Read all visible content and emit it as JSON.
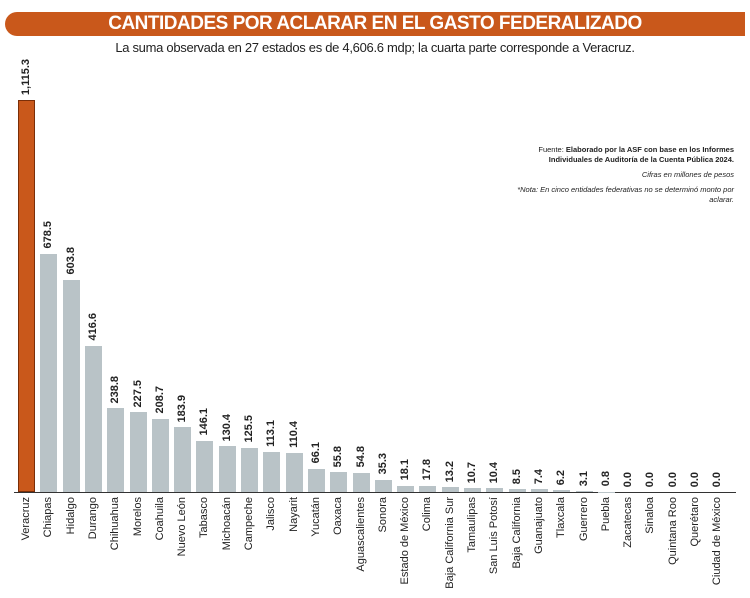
{
  "chart_data": {
    "type": "bar",
    "title": "CANTIDADES POR ACLARAR EN EL GASTO FEDERALIZADO",
    "subtitle": "La suma observada en 27 estados es de 4,606.6 mdp; la cuarta parte corresponde a Veracruz.",
    "categories": [
      "Veracruz",
      "Chiapas",
      "Hidalgo",
      "Durango",
      "Chihuahua",
      "Morelos",
      "Coahuila",
      "Nuevo León",
      "Tabasco",
      "Michoacán",
      "Campeche",
      "Jalisco",
      "Nayarit",
      "Yucatán",
      "Oaxaca",
      "Aguascalientes",
      "Sonora",
      "Estado de México",
      "Colima",
      "Baja California Sur",
      "Tamaulipas",
      "San Luis Potosí",
      "Baja California",
      "Guanajuato",
      "Tlaxcala",
      "Guerrero",
      "Puebla",
      "Zacatecas",
      "Sinaloa",
      "Quintana Roo",
      "Querétaro",
      "Ciudad de México"
    ],
    "values": [
      1115.3,
      678.5,
      603.8,
      416.6,
      238.8,
      227.5,
      208.7,
      183.9,
      146.1,
      130.4,
      125.5,
      113.1,
      110.4,
      66.1,
      55.8,
      54.8,
      35.3,
      18.1,
      17.8,
      13.2,
      10.7,
      10.4,
      8.5,
      7.4,
      6.2,
      3.1,
      0.8,
      0.0,
      0.0,
      0.0,
      0.0,
      0.0
    ],
    "labels": [
      "1,115.3",
      "678.5",
      "603.8",
      "416.6",
      "238.8",
      "227.5",
      "208.7",
      "183.9",
      "146.1",
      "130.4",
      "125.5",
      "113.1",
      "110.4",
      "66.1",
      "55.8",
      "54.8",
      "35.3",
      "18.1",
      "17.8",
      "13.2",
      "10.7",
      "10.4",
      "8.5",
      "7.4",
      "6.2",
      "3.1",
      "0.8",
      "0.0",
      "0.0",
      "0.0",
      "0.0",
      "0.0"
    ],
    "ylim": [
      0,
      1115.3
    ],
    "grid": false,
    "highlight_color": "#c9581b",
    "bar_color": "#b9c3c7"
  },
  "notes": {
    "source_label": "Fuente:",
    "source": "Elaborado por la ASF con base en los Informes Individuales de Auditoría de la Cuenta Pública 2024.",
    "units": "Cifras en millones de pesos",
    "note": "*Nota: En cinco entidades federativas no se determinó monto por aclarar."
  }
}
